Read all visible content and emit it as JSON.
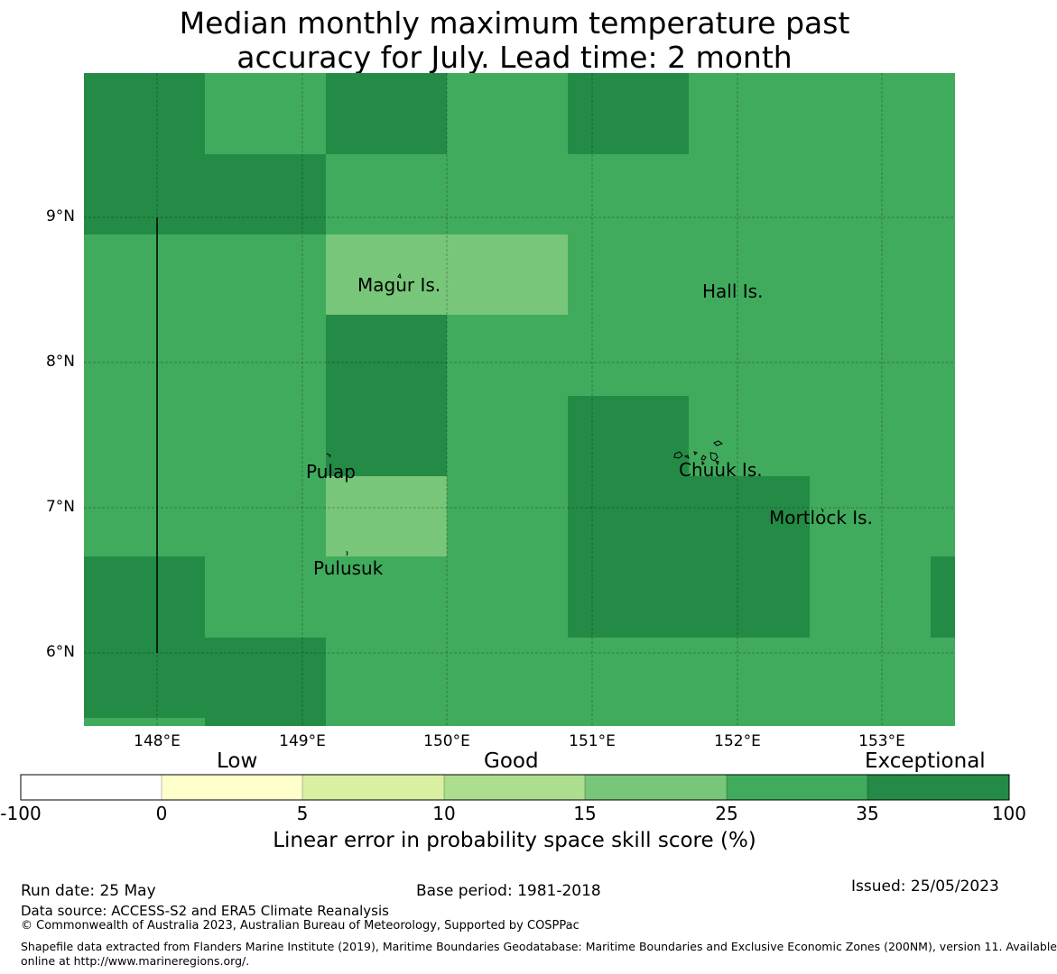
{
  "title_line1": "Median monthly maximum temperature past",
  "title_line2": "accuracy for July. Lead time: 2 month",
  "map": {
    "lon_ticks": [
      "148°E",
      "149°E",
      "150°E",
      "151°E",
      "152°E",
      "153°E"
    ],
    "lat_ticks": [
      "9°N",
      "8°N",
      "7°N",
      "6°N"
    ],
    "places": [
      {
        "name": "Magur Is.",
        "lon": 149.38,
        "lat": 8.52
      },
      {
        "name": "Hall Is.",
        "lon": 151.76,
        "lat": 8.48
      },
      {
        "name": "Pulap",
        "lon": 149.03,
        "lat": 7.24
      },
      {
        "name": "Chuuk Is.",
        "lon": 151.6,
        "lat": 7.25
      },
      {
        "name": "Mortlock Is.",
        "lon": 152.2,
        "lat": 6.92
      },
      {
        "name": "Pulusuk",
        "lon": 149.08,
        "lat": 6.57
      }
    ]
  },
  "colors": {
    "cat_exceptional": "#238b45",
    "cat_very_good": "#41ab5d",
    "cat_good": "#78c679",
    "cat_low_good": "#addd8e",
    "cat_low": "#d9f0a3",
    "cat_very_low": "#ffffcc",
    "cat_none": "#ffffff"
  },
  "colorbar": {
    "category_labels": [
      "Low",
      "Good",
      "Exceptional"
    ],
    "ticks": [
      "-100",
      "0",
      "5",
      "10",
      "15",
      "25",
      "35",
      "100"
    ],
    "colors": [
      "#ffffff",
      "#ffffcc",
      "#d9f0a3",
      "#addd8e",
      "#78c679",
      "#41ab5d",
      "#238b45"
    ],
    "label": "Linear error in probability space skill score (%)"
  },
  "footer": {
    "run_date": "Run date: 25 May",
    "base_period": "Base period: 1981-2018",
    "issued": "Issued: 25/05/2023",
    "data_source": "Data source: ACCESS-S2 and ERA5 Climate Reanalysis",
    "copyright": "© Commonwealth of Australia 2023, Australian Bureau of Meteorology, Supported by COSPPac",
    "shapefile_line1": "Shapefile data extracted from Flanders Marine Institute (2019), Maritime Boundaries Geodatabase: Maritime Boundaries and Exclusive Economic Zones (200NM), version 11. Available",
    "shapefile_line2": "online at http://www.marineregions.org/."
  }
}
